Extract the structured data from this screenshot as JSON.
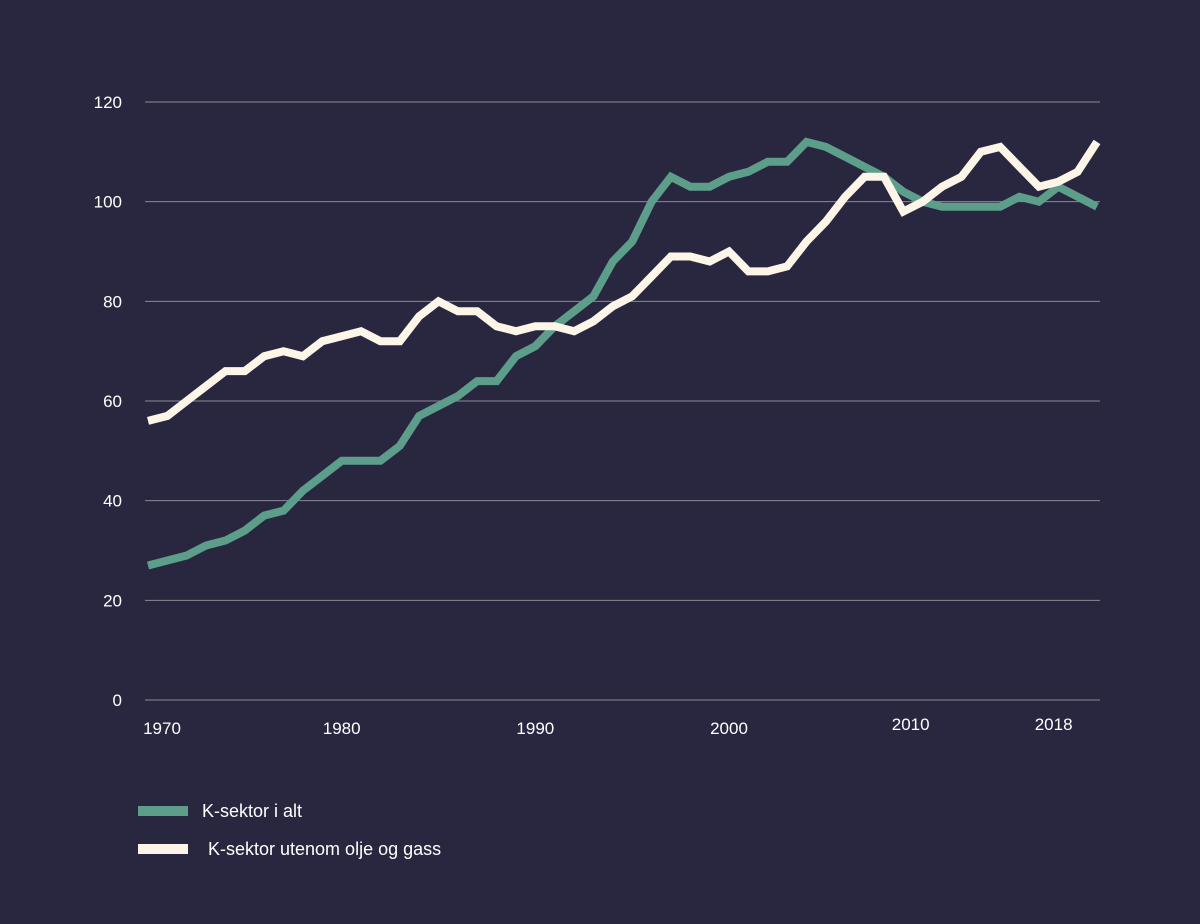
{
  "chart_data": {
    "type": "line",
    "title": "",
    "xlabel": "",
    "ylabel": "",
    "xlim": [
      1970,
      2018
    ],
    "ylim": [
      0,
      120
    ],
    "yticks": [
      0,
      20,
      40,
      60,
      80,
      100,
      120
    ],
    "xticks": [
      1970,
      1980,
      1990,
      2000,
      2010,
      2018
    ],
    "x": [
      1970,
      1971,
      1972,
      1973,
      1974,
      1975,
      1976,
      1977,
      1978,
      1979,
      1980,
      1981,
      1982,
      1983,
      1984,
      1985,
      1986,
      1987,
      1988,
      1989,
      1990,
      1991,
      1992,
      1993,
      1994,
      1995,
      1996,
      1997,
      1998,
      1999,
      2000,
      2001,
      2002,
      2003,
      2004,
      2005,
      2006,
      2007,
      2008,
      2009,
      2010,
      2011,
      2012,
      2013,
      2014,
      2015,
      2016,
      2017,
      2018
    ],
    "series": [
      {
        "name": "K-sektor i alt",
        "color": "#5c9e8a",
        "values": [
          27,
          28,
          29,
          31,
          32,
          34,
          37,
          38,
          42,
          45,
          48,
          48,
          48,
          51,
          57,
          59,
          61,
          64,
          64,
          69,
          71,
          75,
          78,
          81,
          88,
          92,
          100,
          105,
          103,
          103,
          105,
          106,
          108,
          108,
          112,
          111,
          109,
          107,
          105,
          102,
          100,
          99,
          99,
          99,
          99,
          101,
          100,
          103,
          101
        ]
      },
      {
        "name": "K-sektor utenom olje og gass",
        "color": "#fdf6e8",
        "values": [
          56,
          57,
          60,
          63,
          66,
          66,
          69,
          70,
          69,
          72,
          73,
          74,
          72,
          72,
          77,
          80,
          78,
          78,
          75,
          74,
          75,
          75,
          74,
          76,
          79,
          81,
          85,
          89,
          89,
          88,
          90,
          86,
          86,
          87,
          92,
          96,
          101,
          105,
          105,
          98,
          100,
          103,
          105,
          110,
          111,
          107,
          103,
          104,
          106
        ]
      }
    ],
    "legend": {
      "position": "bottom-left",
      "items": [
        "K-sektor i alt",
        "K-sektor utenom olje og gass"
      ]
    },
    "extra_series_point": {
      "x": 2019,
      "values": [
        99,
        112
      ]
    }
  }
}
